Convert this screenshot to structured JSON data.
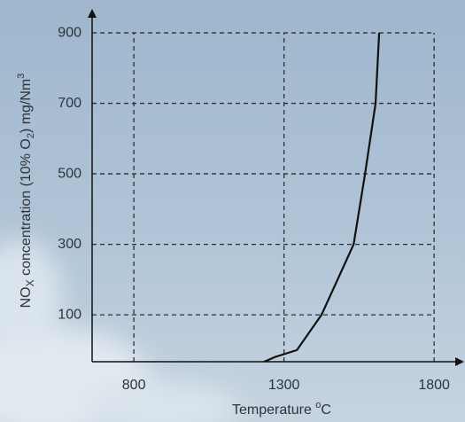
{
  "chart_data": {
    "type": "line",
    "xlabel": [
      "Temperature ",
      "o",
      "C"
    ],
    "ylabel": [
      "NO",
      "X",
      " concentration (10% O",
      "2",
      ") mg/Nm",
      "3"
    ],
    "x": [
      1234,
      1269,
      1343,
      1425,
      1532,
      1570,
      1605,
      1617
    ],
    "series": [
      {
        "color": "#111111",
        "values": [
          -33,
          -20,
          0,
          100,
          300,
          500,
          700,
          900
        ]
      }
    ],
    "xlim": [
      661,
      1894
    ],
    "ylim": [
      -33,
      963
    ],
    "xticks": [
      800,
      1300,
      1800
    ],
    "yticks": [
      100,
      300,
      500,
      700,
      900
    ],
    "grid": true
  }
}
